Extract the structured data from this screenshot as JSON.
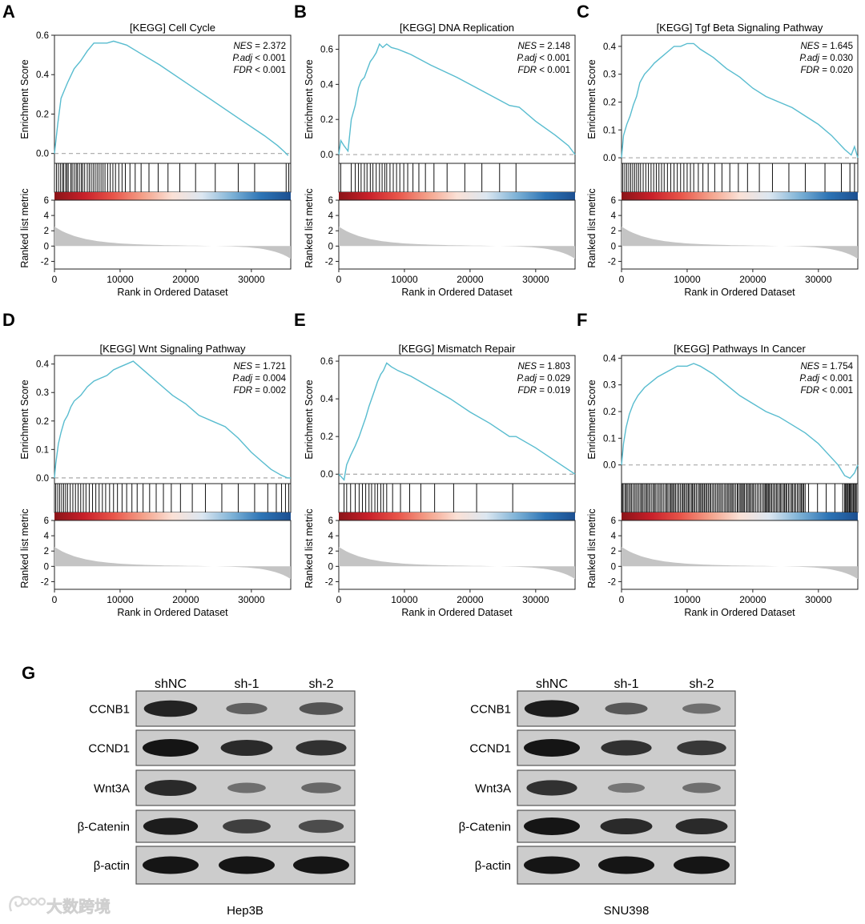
{
  "colors": {
    "curve": "#58bccf",
    "dashed": "#a8a8a8",
    "metric_fill": "#c4c4c4",
    "heat_gradient": [
      "#8b1418",
      "#c8202a",
      "#e8554a",
      "#f4a18a",
      "#fbe1d6",
      "#dce7f1",
      "#7fb3d7",
      "#2d74b5",
      "#1c4f91"
    ],
    "blot_bg": "#cccccc",
    "band": "#151515"
  },
  "gsea_panels": [
    {
      "letter": "A",
      "title": "[KEGG] Cell Cycle",
      "stats": [
        {
          "label": "NES",
          "value": "= 2.372"
        },
        {
          "label": "P.adj",
          "value": "< 0.001"
        },
        {
          "label": "FDR",
          "value": "< 0.001"
        }
      ]
    },
    {
      "letter": "B",
      "title": "[KEGG] DNA Replication",
      "stats": [
        {
          "label": "NES",
          "value": "= 2.148"
        },
        {
          "label": "P.adj",
          "value": "< 0.001"
        },
        {
          "label": "FDR",
          "value": "< 0.001"
        }
      ]
    },
    {
      "letter": "C",
      "title": "[KEGG] Tgf Beta Signaling Pathway",
      "stats": [
        {
          "label": "NES",
          "value": "= 1.645"
        },
        {
          "label": "P.adj",
          "value": "= 0.030"
        },
        {
          "label": "FDR",
          "value": "= 0.020"
        }
      ]
    },
    {
      "letter": "D",
      "title": "[KEGG] Wnt Signaling Pathway",
      "stats": [
        {
          "label": "NES",
          "value": "= 1.721"
        },
        {
          "label": "P.adj",
          "value": "= 0.004"
        },
        {
          "label": "FDR",
          "value": "= 0.002"
        }
      ]
    },
    {
      "letter": "E",
      "title": "[KEGG] Mismatch Repair",
      "stats": [
        {
          "label": "NES",
          "value": "= 1.803"
        },
        {
          "label": "P.adj",
          "value": "= 0.029"
        },
        {
          "label": "FDR",
          "value": "= 0.019"
        }
      ]
    },
    {
      "letter": "F",
      "title": "[KEGG] Pathways In Cancer",
      "stats": [
        {
          "label": "NES",
          "value": "= 1.754"
        },
        {
          "label": "P.adj",
          "value": "< 0.001"
        },
        {
          "label": "FDR",
          "value": "< 0.001"
        }
      ]
    }
  ],
  "chart_data": [
    {
      "type": "line",
      "title": "[KEGG] Cell Cycle",
      "xlabel": "Rank in Ordered Dataset",
      "ylabel": "Enrichment Score",
      "xlim": [
        0,
        36000
      ],
      "ylim": [
        -0.05,
        0.6
      ],
      "yticks": [
        0.0,
        0.2,
        0.4,
        0.6
      ],
      "xticks": [
        0,
        10000,
        20000,
        30000
      ],
      "x": [
        0,
        500,
        1000,
        1500,
        2000,
        3000,
        4000,
        5000,
        6000,
        7000,
        8000,
        9000,
        10000,
        11000,
        13000,
        16000,
        20000,
        24000,
        28000,
        32000,
        34000,
        35000,
        35600
      ],
      "y": [
        0.0,
        0.15,
        0.28,
        0.32,
        0.36,
        0.43,
        0.47,
        0.52,
        0.56,
        0.56,
        0.56,
        0.57,
        0.56,
        0.55,
        0.51,
        0.45,
        0.36,
        0.27,
        0.18,
        0.09,
        0.04,
        0.01,
        -0.01
      ],
      "hits": [
        300,
        600,
        900,
        1200,
        1400,
        1700,
        1900,
        2100,
        2500,
        2700,
        3000,
        3300,
        3500,
        3800,
        4100,
        4300,
        4600,
        5000,
        5300,
        5600,
        5900,
        6200,
        6500,
        6800,
        7100,
        7400,
        7700,
        8100,
        8500,
        8900,
        9300,
        9800,
        10300,
        10800,
        11500,
        12300,
        13200,
        14400,
        15800,
        17300,
        19100,
        21500,
        24500,
        28000,
        30500,
        35300,
        35700
      ],
      "metric_ylabel": "Ranked list metric",
      "metric_yticks": [
        6,
        4,
        2,
        0,
        -2
      ],
      "metric_ylim": [
        -3,
        6
      ]
    },
    {
      "type": "line",
      "title": "[KEGG] DNA Replication",
      "xlabel": "Rank in Ordered Dataset",
      "ylabel": "Enrichment Score",
      "xlim": [
        0,
        36000
      ],
      "ylim": [
        -0.05,
        0.68
      ],
      "yticks": [
        0.0,
        0.2,
        0.4,
        0.6
      ],
      "xticks": [
        0,
        10000,
        20000,
        30000
      ],
      "x": [
        0,
        300,
        800,
        1400,
        1900,
        2500,
        3000,
        3400,
        3900,
        4300,
        4800,
        5200,
        5700,
        6200,
        6700,
        7300,
        8000,
        9000,
        11000,
        14000,
        18000,
        22000,
        26000,
        27500,
        30000,
        33000,
        35000,
        36000
      ],
      "y": [
        0.0,
        0.08,
        0.05,
        0.02,
        0.2,
        0.28,
        0.38,
        0.42,
        0.44,
        0.48,
        0.53,
        0.55,
        0.58,
        0.63,
        0.61,
        0.63,
        0.61,
        0.6,
        0.57,
        0.51,
        0.44,
        0.36,
        0.28,
        0.27,
        0.19,
        0.11,
        0.05,
        0.0
      ],
      "hits": [
        300,
        1900,
        2500,
        3000,
        3400,
        3900,
        4300,
        4800,
        5200,
        5700,
        6200,
        6600,
        7000,
        7300,
        7800,
        8300,
        8800,
        9300,
        9900,
        10500,
        11300,
        12200,
        13200,
        14500,
        16500,
        19200,
        21800,
        24500,
        27000
      ],
      "metric_ylabel": "Ranked list metric",
      "metric_yticks": [
        6,
        4,
        2,
        0,
        -2
      ],
      "metric_ylim": [
        -3,
        6
      ]
    },
    {
      "type": "line",
      "title": "[KEGG] Tgf Beta Signaling Pathway",
      "xlabel": "Rank in Ordered Dataset",
      "ylabel": "Enrichment Score",
      "xlim": [
        0,
        36000
      ],
      "ylim": [
        -0.02,
        0.44
      ],
      "yticks": [
        0.0,
        0.1,
        0.2,
        0.3,
        0.4
      ],
      "xticks": [
        0,
        10000,
        20000,
        30000
      ],
      "x": [
        0,
        300,
        800,
        1300,
        1800,
        2300,
        2800,
        3500,
        4300,
        5000,
        6000,
        7000,
        8000,
        9000,
        10000,
        11000,
        12000,
        14000,
        16000,
        18000,
        20000,
        22000,
        24000,
        26000,
        28000,
        30000,
        32000,
        34000,
        35000,
        35500,
        36000
      ],
      "y": [
        0.0,
        0.08,
        0.12,
        0.15,
        0.19,
        0.22,
        0.27,
        0.3,
        0.32,
        0.34,
        0.36,
        0.38,
        0.4,
        0.4,
        0.41,
        0.41,
        0.39,
        0.36,
        0.32,
        0.29,
        0.25,
        0.22,
        0.2,
        0.18,
        0.15,
        0.12,
        0.08,
        0.03,
        0.01,
        0.04,
        0.0
      ],
      "hits": [
        200,
        500,
        800,
        1100,
        1400,
        1700,
        2000,
        2300,
        2600,
        2900,
        3300,
        3700,
        4100,
        4500,
        4900,
        5300,
        5700,
        6100,
        6500,
        7000,
        7500,
        8000,
        8500,
        9000,
        9500,
        10000,
        10500,
        11000,
        11700,
        12400,
        13200,
        14200,
        15300,
        16500,
        17800,
        19200,
        21000,
        23000,
        25500,
        28000,
        31000,
        33500,
        34800,
        35500
      ],
      "metric_ylabel": "Ranked list metric",
      "metric_yticks": [
        6,
        4,
        2,
        0,
        -2
      ],
      "metric_ylim": [
        -3,
        6
      ]
    },
    {
      "type": "line",
      "title": "[KEGG] Wnt Signaling Pathway",
      "xlabel": "Rank in Ordered Dataset",
      "ylabel": "Enrichment Score",
      "xlim": [
        0,
        36000
      ],
      "ylim": [
        -0.02,
        0.43
      ],
      "yticks": [
        0.0,
        0.1,
        0.2,
        0.3,
        0.4
      ],
      "xticks": [
        0,
        10000,
        20000,
        30000
      ],
      "x": [
        0,
        200,
        600,
        1000,
        1500,
        2000,
        2500,
        3000,
        4000,
        5000,
        6000,
        7000,
        8000,
        9000,
        10000,
        11000,
        12000,
        13000,
        14000,
        16000,
        18000,
        20000,
        22000,
        24000,
        26000,
        28000,
        30000,
        31500,
        33000,
        34500,
        35500,
        36000
      ],
      "y": [
        0.0,
        0.05,
        0.12,
        0.16,
        0.2,
        0.22,
        0.25,
        0.27,
        0.29,
        0.32,
        0.34,
        0.35,
        0.36,
        0.38,
        0.39,
        0.4,
        0.41,
        0.39,
        0.37,
        0.33,
        0.29,
        0.26,
        0.22,
        0.2,
        0.18,
        0.14,
        0.09,
        0.06,
        0.03,
        0.01,
        0.0,
        0.0
      ],
      "hits": [
        200,
        500,
        800,
        1100,
        1400,
        1700,
        2000,
        2400,
        2800,
        3200,
        3600,
        4000,
        4400,
        4800,
        5300,
        5800,
        6300,
        6800,
        7300,
        7800,
        8400,
        9000,
        9600,
        10300,
        11000,
        11800,
        12600,
        13500,
        14500,
        15500,
        16600,
        17800,
        19200,
        21000,
        23000,
        25500,
        28000,
        30500,
        32500,
        33800,
        34600,
        35200,
        35700
      ],
      "metric_ylabel": "Ranked list metric",
      "metric_yticks": [
        6,
        4,
        2,
        0,
        -2
      ],
      "metric_ylim": [
        -3,
        6
      ]
    },
    {
      "type": "line",
      "title": "[KEGG] Mismatch Repair",
      "xlabel": "Rank in Ordered Dataset",
      "ylabel": "Enrichment Score",
      "xlim": [
        0,
        36000
      ],
      "ylim": [
        -0.05,
        0.63
      ],
      "yticks": [
        0.0,
        0.2,
        0.4,
        0.6
      ],
      "xticks": [
        0,
        10000,
        20000,
        30000
      ],
      "x": [
        0,
        800,
        1200,
        1800,
        2500,
        3100,
        3600,
        4100,
        4600,
        5000,
        5500,
        5900,
        6400,
        6800,
        7300,
        8000,
        9000,
        11000,
        14000,
        17000,
        20000,
        23000,
        26000,
        27000,
        30000,
        33000,
        36000
      ],
      "y": [
        0.0,
        -0.03,
        0.05,
        0.1,
        0.15,
        0.2,
        0.25,
        0.3,
        0.36,
        0.4,
        0.45,
        0.49,
        0.53,
        0.55,
        0.59,
        0.57,
        0.55,
        0.52,
        0.46,
        0.4,
        0.33,
        0.27,
        0.2,
        0.2,
        0.14,
        0.07,
        0.0
      ],
      "hits": [
        800,
        1200,
        1800,
        2500,
        3100,
        3600,
        4100,
        4600,
        5000,
        5500,
        5900,
        6400,
        6800,
        7300,
        8200,
        9400,
        10800,
        12500,
        14600,
        17500,
        21000,
        26500
      ],
      "metric_ylabel": "Ranked list metric",
      "metric_yticks": [
        6,
        4,
        2,
        0,
        -2
      ],
      "metric_ylim": [
        -3,
        6
      ]
    },
    {
      "type": "line",
      "title": "[KEGG] Pathways In Cancer",
      "xlabel": "Rank in Ordered Dataset",
      "ylabel": "Enrichment Score",
      "xlim": [
        0,
        36000
      ],
      "ylim": [
        -0.07,
        0.41
      ],
      "yticks": [
        0.0,
        0.1,
        0.2,
        0.3,
        0.4
      ],
      "xticks": [
        0,
        10000,
        20000,
        30000
      ],
      "x": [
        0,
        300,
        700,
        1200,
        1800,
        2500,
        3500,
        4500,
        5500,
        7000,
        8500,
        10000,
        11000,
        12000,
        14000,
        16000,
        18000,
        20000,
        22000,
        24000,
        26000,
        28000,
        30000,
        31500,
        33000,
        34000,
        34800,
        35500,
        36000
      ],
      "y": [
        0.0,
        0.08,
        0.14,
        0.19,
        0.23,
        0.26,
        0.29,
        0.31,
        0.33,
        0.35,
        0.37,
        0.37,
        0.38,
        0.37,
        0.34,
        0.3,
        0.26,
        0.23,
        0.2,
        0.18,
        0.15,
        0.12,
        0.08,
        0.04,
        0.0,
        -0.04,
        -0.05,
        -0.03,
        0.0
      ],
      "hits_density": "dense across 0-28000, sparse 28000-34000, dense 34000-36000",
      "metric_ylabel": "Ranked list metric",
      "metric_yticks": [
        6,
        4,
        2,
        0,
        -2
      ],
      "metric_ylim": [
        -3,
        6
      ]
    }
  ],
  "western_blot": {
    "letter": "G",
    "lanes": [
      "shNC",
      "sh-1",
      "sh-2"
    ],
    "cell_lines": [
      "Hep3B",
      "SNU398"
    ],
    "proteins": [
      "CCNB1",
      "CCND1",
      "Wnt3A",
      "β-Catenin",
      "β-actin"
    ],
    "intensity_hep3b": [
      [
        0.9,
        0.45,
        0.55
      ],
      [
        1.0,
        0.85,
        0.8
      ],
      [
        0.85,
        0.35,
        0.4
      ],
      [
        0.95,
        0.7,
        0.6
      ],
      [
        1.0,
        1.0,
        1.0
      ]
    ],
    "intensity_snu398": [
      [
        0.95,
        0.5,
        0.35
      ],
      [
        1.0,
        0.8,
        0.75
      ],
      [
        0.8,
        0.3,
        0.35
      ],
      [
        1.0,
        0.85,
        0.85
      ],
      [
        1.0,
        1.0,
        1.0
      ]
    ]
  },
  "watermark": {
    "text": "大数跨境"
  }
}
